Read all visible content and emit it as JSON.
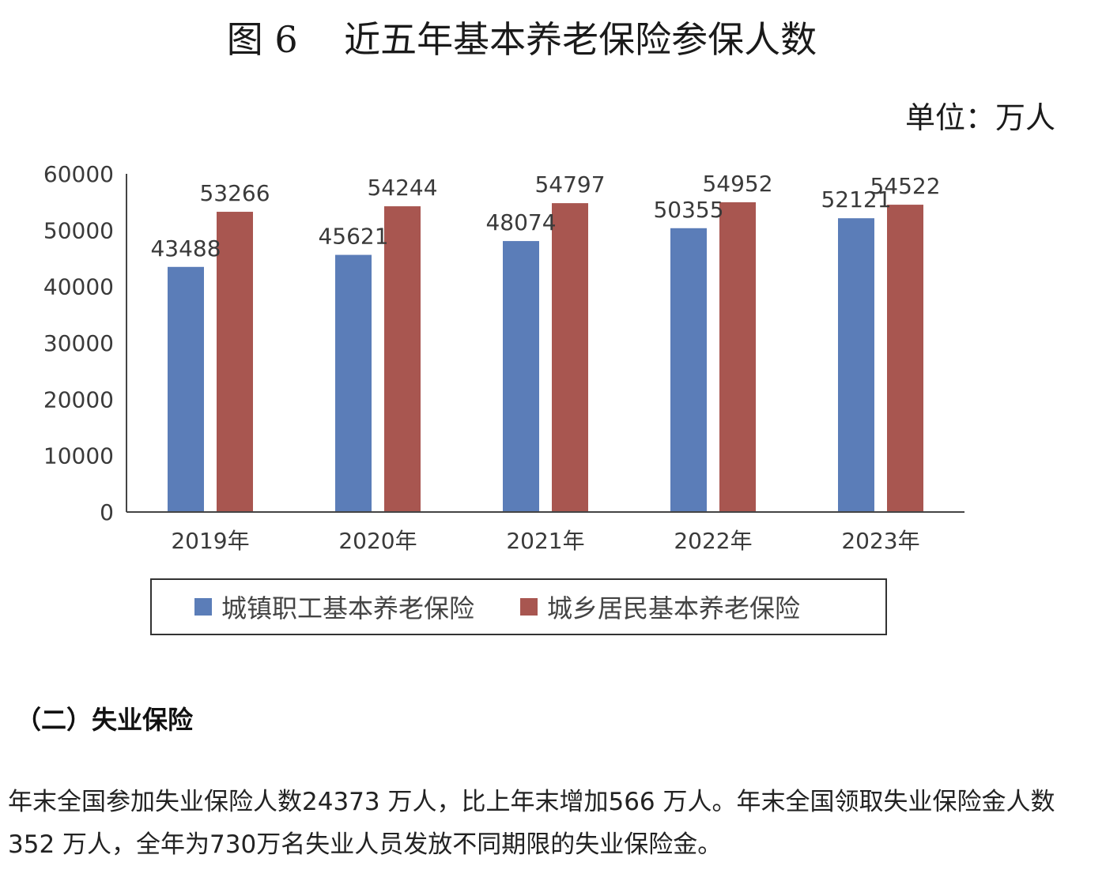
{
  "figure": {
    "title": "图 6    近五年基本养老保险参保人数",
    "unit": "单位：万人"
  },
  "chart_data": {
    "type": "bar",
    "categories": [
      "2019年",
      "2020年",
      "2021年",
      "2022年",
      "2023年"
    ],
    "series": [
      {
        "name": "城镇职工基本养老保险",
        "color": "#5b7db8",
        "values": [
          43488,
          45621,
          48074,
          50355,
          52121
        ]
      },
      {
        "name": "城乡居民基本养老保险",
        "color": "#a85650",
        "values": [
          53266,
          54244,
          54797,
          54952,
          54522
        ]
      }
    ],
    "yticks": [
      "0",
      "10000",
      "20000",
      "30000",
      "40000",
      "50000",
      "60000"
    ],
    "ylim": [
      0,
      60000
    ],
    "legend_position": "bottom",
    "grid": false
  },
  "section": {
    "heading": "（二）失业保险",
    "paragraph": "年末全国参加失业保险人数24373 万人，比上年末增加566 万人。年末全国领取失业保险金人数352 万人，全年为730万名失业人员发放不同期限的失业保险金。"
  }
}
